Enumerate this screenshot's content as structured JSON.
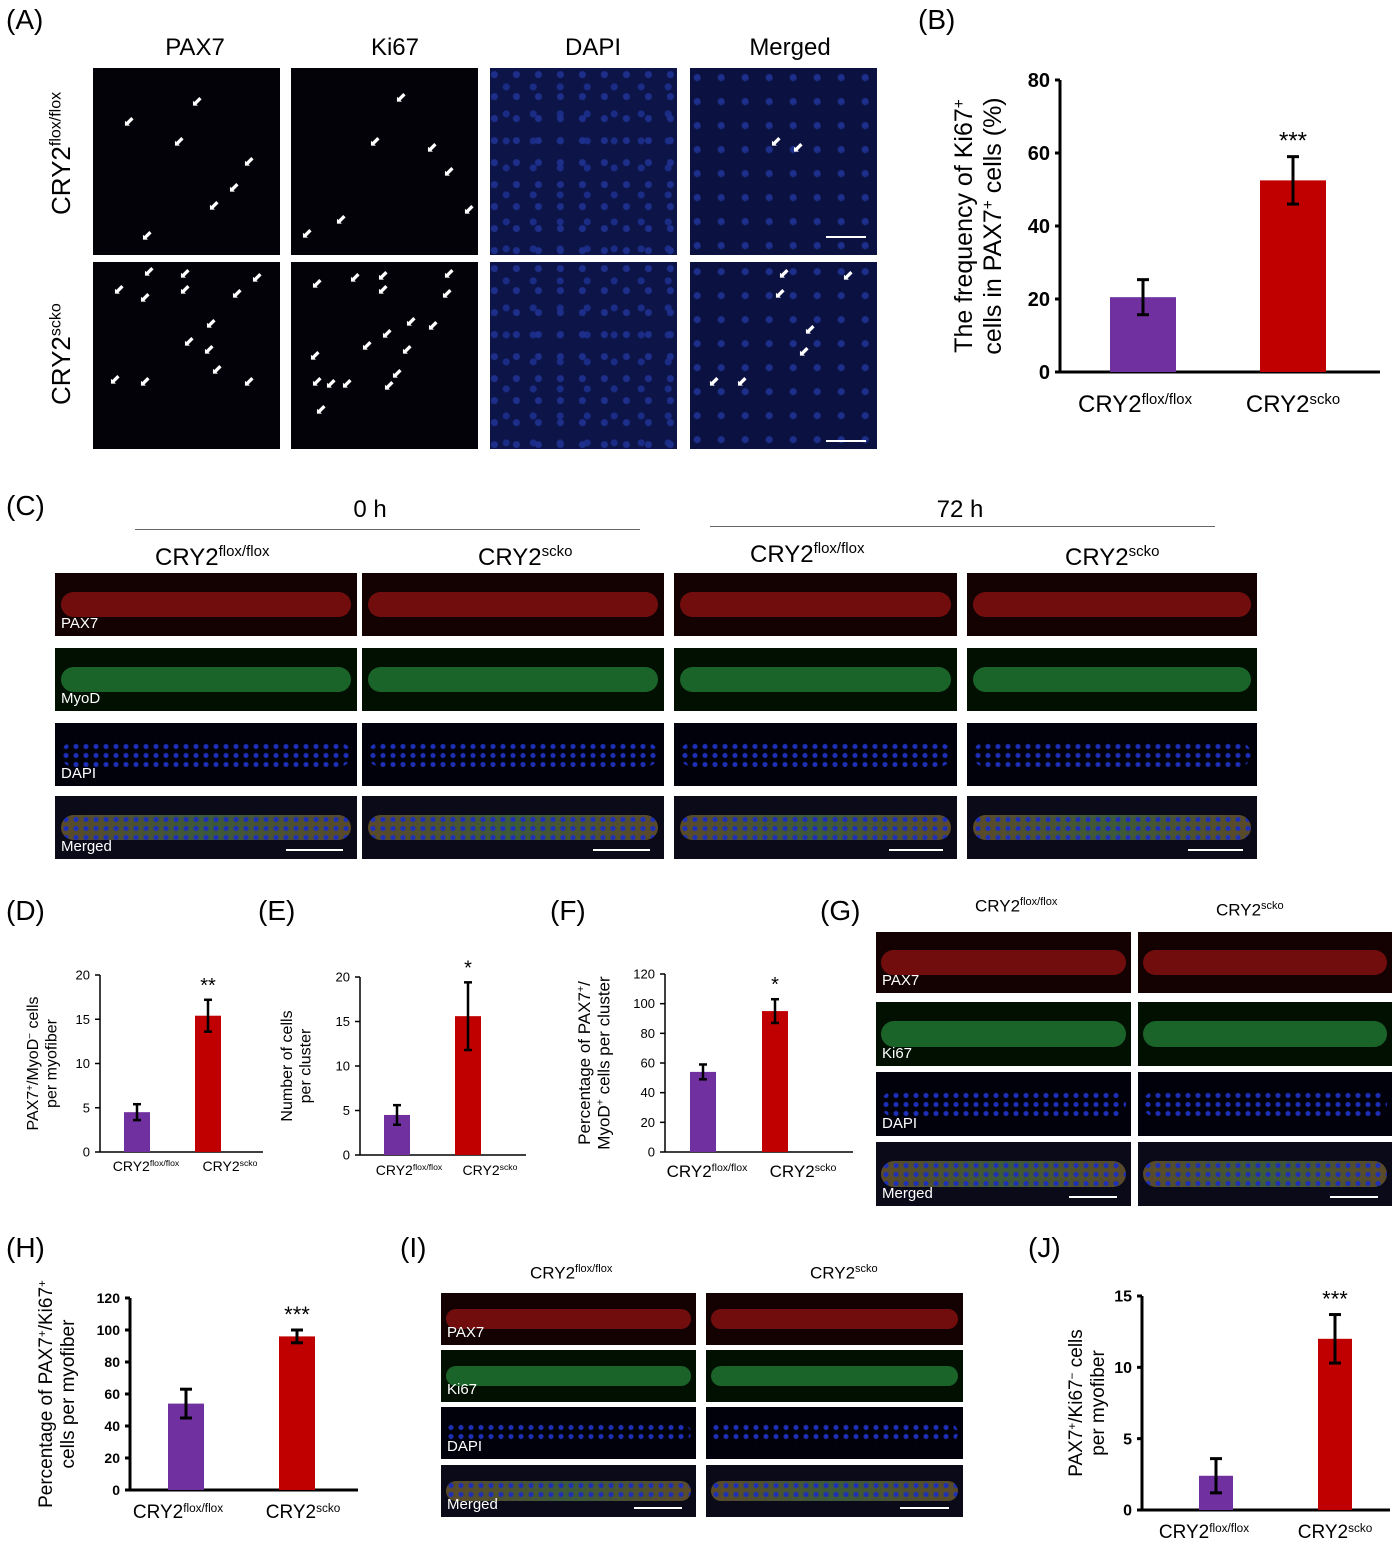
{
  "panels": {
    "A": {
      "label": "(A)",
      "columns": [
        "PAX7",
        "Ki67",
        "DAPI",
        "Merged"
      ],
      "rows": [
        {
          "base": "CRY2",
          "sup": "flox/flox"
        },
        {
          "base": "CRY2",
          "sup": "scko"
        }
      ]
    },
    "B": {
      "label": "(B)"
    },
    "C": {
      "label": "(C)",
      "time_groups": [
        "0 h",
        "72 h"
      ],
      "conditions": [
        {
          "base": "CRY2",
          "sup": "flox/flox"
        },
        {
          "base": "CRY2",
          "sup": "scko"
        },
        {
          "base": "CRY2",
          "sup": "flox/flox"
        },
        {
          "base": "CRY2",
          "sup": "scko"
        }
      ],
      "row_labels": [
        "PAX7",
        "MyoD",
        "DAPI",
        "Merged"
      ]
    },
    "D": {
      "label": "(D)"
    },
    "E": {
      "label": "(E)"
    },
    "F": {
      "label": "(F)"
    },
    "G": {
      "label": "(G)",
      "conditions": [
        {
          "base": "CRY2",
          "sup": "flox/flox"
        },
        {
          "base": "CRY2",
          "sup": "scko"
        }
      ],
      "row_labels": [
        "PAX7",
        "Ki67",
        "DAPI",
        "Merged"
      ]
    },
    "H": {
      "label": "(H)"
    },
    "I": {
      "label": "(I)",
      "conditions": [
        {
          "base": "CRY2",
          "sup": "flox/flox"
        },
        {
          "base": "CRY2",
          "sup": "scko"
        }
      ],
      "row_labels": [
        "PAX7",
        "Ki67",
        "DAPI",
        "Merged"
      ]
    },
    "J": {
      "label": "(J)"
    }
  },
  "colors": {
    "control": "#7030a0",
    "scko": "#c00000",
    "pax7": "#c0181a",
    "green": "#2fa84a",
    "dapi": "#1e2fb8"
  },
  "chart_data": [
    {
      "panel": "B",
      "type": "bar",
      "categories": [
        {
          "base": "CRY2",
          "sup": "flox/flox"
        },
        {
          "base": "CRY2",
          "sup": "scko"
        }
      ],
      "values": [
        20.5,
        52.5
      ],
      "errors": [
        4.8,
        6.5
      ],
      "significance": [
        "",
        "***"
      ],
      "ylabel_lines": [
        [
          "The frequency of Ki67",
          "+"
        ],
        [
          "cells in PAX7",
          "+",
          " cells (%)"
        ]
      ],
      "ylim": [
        0,
        80
      ],
      "yticks": [
        0,
        20,
        40,
        60,
        80
      ]
    },
    {
      "panel": "D",
      "type": "bar",
      "categories": [
        {
          "base": "CRY2",
          "sup": "flox/flox"
        },
        {
          "base": "CRY2",
          "sup": "scko"
        }
      ],
      "values": [
        4.5,
        15.4
      ],
      "errors": [
        0.9,
        1.8
      ],
      "significance": [
        "",
        "**"
      ],
      "ylabel_lines": [
        [
          "PAX7",
          "+",
          "/MyoD",
          "−",
          " cells"
        ],
        [
          "per myofiber"
        ]
      ],
      "ylim": [
        0,
        20
      ],
      "yticks": [
        0,
        5,
        10,
        15,
        20
      ]
    },
    {
      "panel": "E",
      "type": "bar",
      "categories": [
        {
          "base": "CRY2",
          "sup": "flox/flox"
        },
        {
          "base": "CRY2",
          "sup": "scko"
        }
      ],
      "values": [
        4.5,
        15.6
      ],
      "errors": [
        1.1,
        3.8
      ],
      "significance": [
        "",
        "*"
      ],
      "ylabel_lines": [
        [
          "Number of cells"
        ],
        [
          "per cluster"
        ]
      ],
      "ylim": [
        0,
        20
      ],
      "yticks": [
        0,
        5,
        10,
        15,
        20
      ]
    },
    {
      "panel": "F",
      "type": "bar",
      "categories": [
        {
          "base": "CRY2",
          "sup": "flox/flox"
        },
        {
          "base": "CRY2",
          "sup": "scko"
        }
      ],
      "values": [
        54,
        95
      ],
      "errors": [
        5,
        8
      ],
      "significance": [
        "",
        "*"
      ],
      "ylabel_lines": [
        [
          "Percentage of PAX7",
          "+",
          "/"
        ],
        [
          "MyoD",
          "+",
          " cells per cluster"
        ]
      ],
      "ylim": [
        0,
        120
      ],
      "yticks": [
        0,
        20,
        40,
        60,
        80,
        100,
        120
      ]
    },
    {
      "panel": "H",
      "type": "bar",
      "categories": [
        {
          "base": "CRY2",
          "sup": "flox/flox"
        },
        {
          "base": "CRY2",
          "sup": "scko"
        }
      ],
      "values": [
        54,
        96
      ],
      "errors": [
        9,
        4
      ],
      "significance": [
        "",
        "***"
      ],
      "ylabel_lines": [
        [
          "Percentage of PAX7",
          "+",
          "/Ki67",
          "+"
        ],
        [
          "cells per myofiber"
        ]
      ],
      "ylim": [
        0,
        120
      ],
      "yticks": [
        0,
        20,
        40,
        60,
        80,
        100,
        120
      ]
    },
    {
      "panel": "J",
      "type": "bar",
      "categories": [
        {
          "base": "CRY2",
          "sup": "flox/flox"
        },
        {
          "base": "CRY2",
          "sup": "scko"
        }
      ],
      "values": [
        2.4,
        12
      ],
      "errors": [
        1.2,
        1.7
      ],
      "significance": [
        "",
        "***"
      ],
      "ylabel_lines": [
        [
          "PAX7",
          "+",
          "/Ki67",
          "−",
          " cells"
        ],
        [
          "per myofiber"
        ]
      ],
      "ylim": [
        0,
        15
      ],
      "yticks": [
        0,
        5,
        10,
        15
      ]
    }
  ]
}
